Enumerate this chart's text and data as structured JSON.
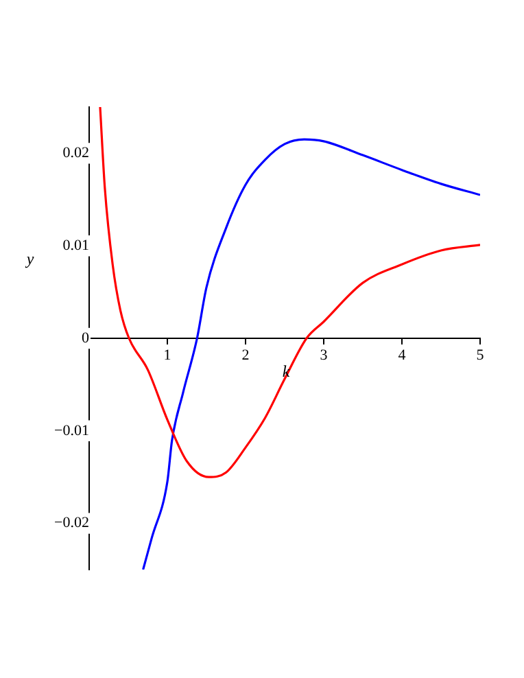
{
  "chart_data": {
    "type": "line",
    "xlabel": "k",
    "ylabel": "y",
    "xlim": [
      0,
      5
    ],
    "ylim": [
      -0.025,
      0.025
    ],
    "xticks": [
      1,
      2,
      3,
      4,
      5
    ],
    "yticks": [
      -0.02,
      -0.01,
      0,
      0.01,
      0.02
    ],
    "grid": false,
    "legend": false,
    "marker": "none",
    "line_style": "solid",
    "series": [
      {
        "color": "#ff0000",
        "x": [
          0.14,
          0.2,
          0.3,
          0.4,
          0.51,
          0.75,
          1,
          1.25,
          1.53,
          1.75,
          2,
          2.25,
          2.5,
          2.78,
          3,
          3.5,
          4,
          4.5,
          5
        ],
        "values": [
          0.025,
          0.0163,
          0.008,
          0.003,
          0,
          -0.0034,
          -0.0088,
          -0.0133,
          -0.015,
          -0.0145,
          -0.0118,
          -0.0086,
          -0.0044,
          0,
          0.0018,
          0.006,
          0.008,
          0.0095,
          0.0101
        ]
      },
      {
        "color": "#0000ff",
        "x": [
          0.69,
          0.8,
          1,
          1.06,
          1.2,
          1.38,
          1.5,
          1.75,
          2,
          2.25,
          2.5,
          2.75,
          3,
          3.5,
          4,
          4.5,
          5
        ],
        "values": [
          -0.025,
          -0.0216,
          -0.0155,
          -0.011,
          -0.0059,
          0,
          0.0055,
          0.0119,
          0.0166,
          0.0193,
          0.021,
          0.0215,
          0.0213,
          0.0198,
          0.0182,
          0.0167,
          0.0155
        ]
      }
    ]
  }
}
